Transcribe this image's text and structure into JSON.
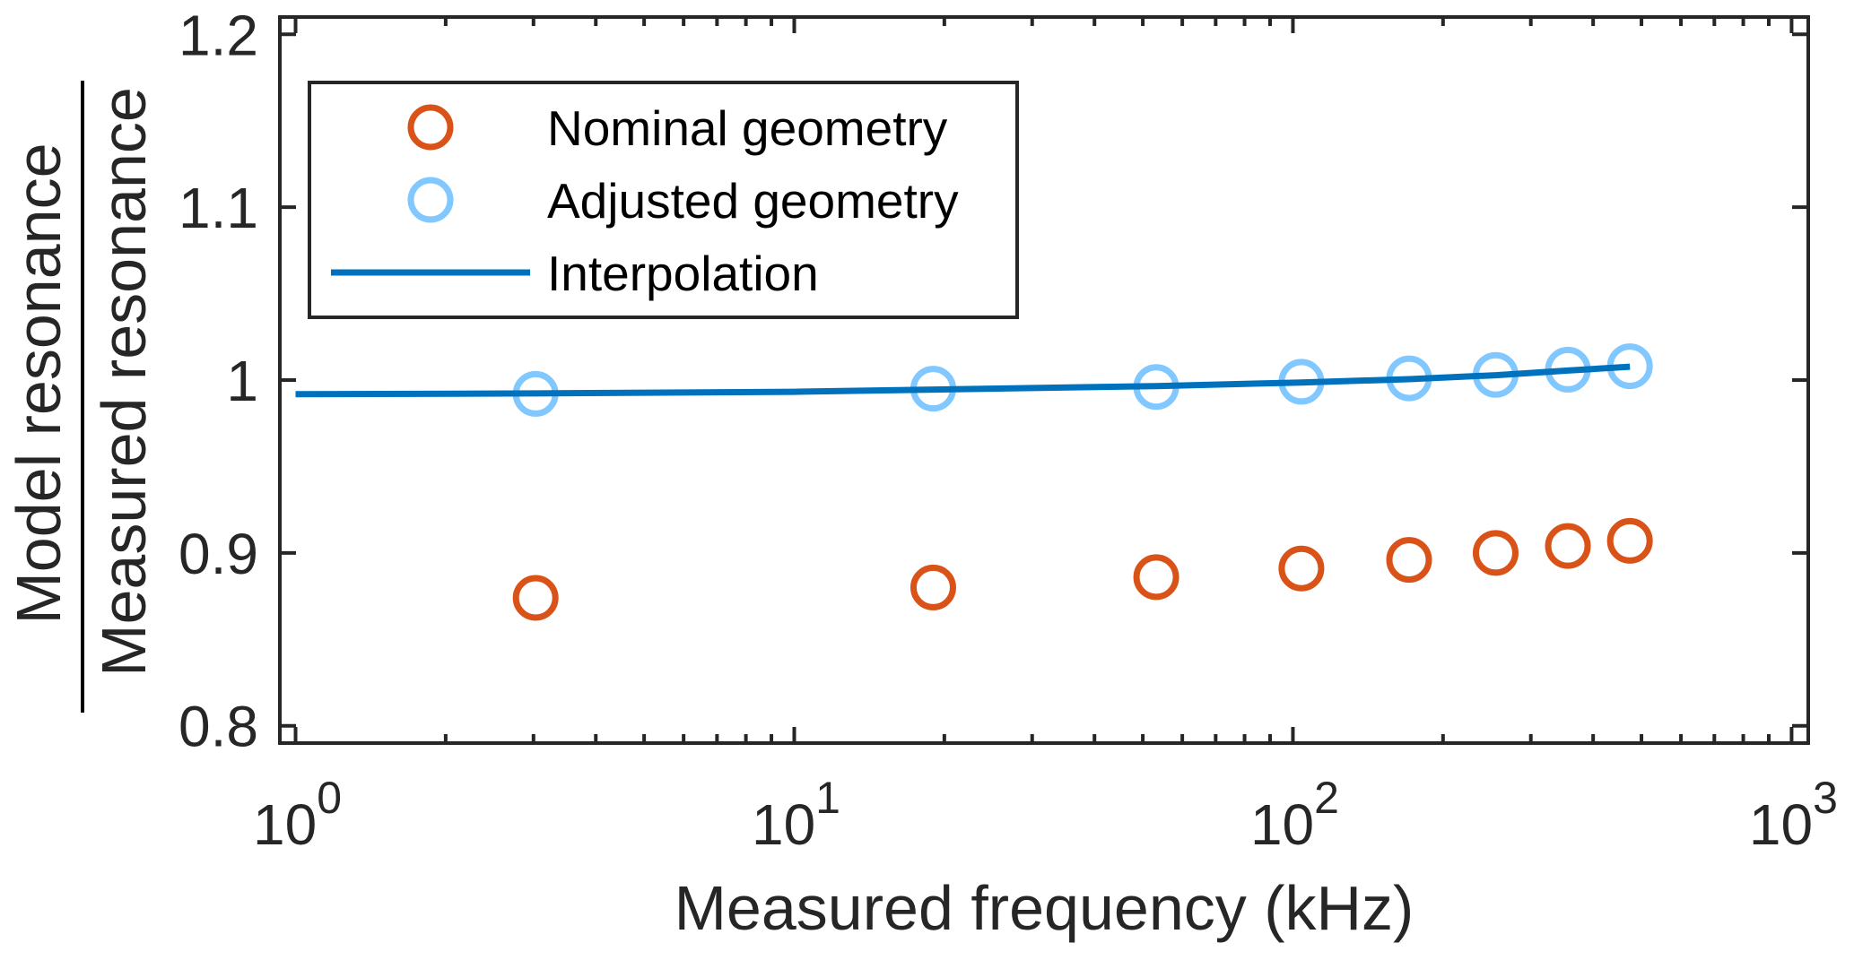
{
  "chart_data": {
    "type": "scatter",
    "title": "",
    "xlabel": "Measured frequency (kHz)",
    "ylabel_numerator": "Model resonance",
    "ylabel_denominator": "Measured resonance",
    "xscale": "log",
    "xlim": [
      0.93,
      1080
    ],
    "ylim": [
      0.79,
      1.21
    ],
    "x_ticks": [
      {
        "value": 1,
        "base": "10",
        "exp": "0"
      },
      {
        "value": 10,
        "base": "10",
        "exp": "1"
      },
      {
        "value": 100,
        "base": "10",
        "exp": "2"
      },
      {
        "value": 1000,
        "base": "10",
        "exp": "3"
      }
    ],
    "y_ticks": [
      {
        "value": 0.8,
        "label": "0.8"
      },
      {
        "value": 0.9,
        "label": "0.9"
      },
      {
        "value": 1.0,
        "label": "1"
      },
      {
        "value": 1.1,
        "label": "1.1"
      },
      {
        "value": 1.2,
        "label": "1.2"
      }
    ],
    "grid": false,
    "legend_position": "top-left",
    "series": [
      {
        "name": "Nominal geometry",
        "kind": "marker",
        "marker": "circle-open",
        "color": "#D95319",
        "x": [
          3.03,
          19.0,
          53.2,
          104,
          171,
          255,
          356,
          474
        ],
        "y": [
          0.874,
          0.88,
          0.886,
          0.891,
          0.896,
          0.9,
          0.904,
          0.907
        ]
      },
      {
        "name": "Adjusted geometry",
        "kind": "marker",
        "marker": "circle-open",
        "color": "#80C8FF",
        "x": [
          3.03,
          19.0,
          53.2,
          104,
          171,
          255,
          356,
          474
        ],
        "y": [
          0.992,
          0.995,
          0.996,
          0.999,
          1.001,
          1.003,
          1.006,
          1.008
        ]
      },
      {
        "name": "Interpolation",
        "kind": "line",
        "color": "#0072BD",
        "x": [
          1,
          3.03,
          10,
          19.0,
          53.2,
          104,
          171,
          255,
          356,
          474
        ],
        "y": [
          0.9918,
          0.9923,
          0.9932,
          0.9945,
          0.9965,
          0.9986,
          1.0005,
          1.0028,
          1.0055,
          1.0077
        ]
      }
    ]
  },
  "colors": {
    "axis": "#262626",
    "background": "#FFFFFF",
    "legend_border": "#262626"
  }
}
